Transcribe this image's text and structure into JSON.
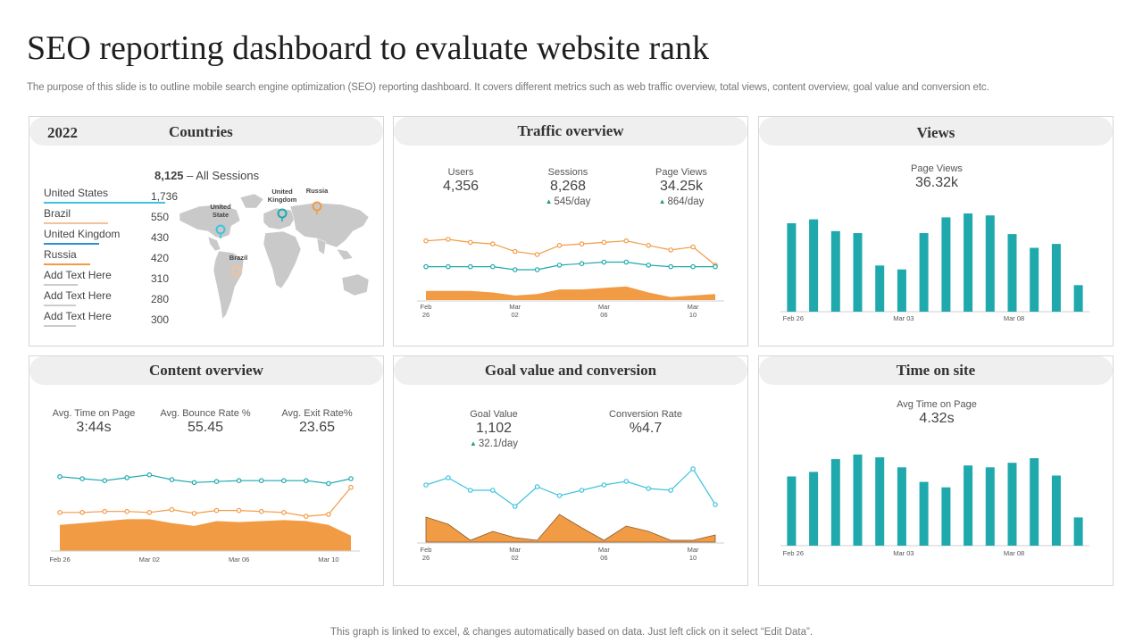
{
  "page": {
    "title": "SEO reporting dashboard to evaluate website rank",
    "subtitle": "The purpose of this slide is to outline mobile search engine optimization (SEO) reporting dashboard. It covers different metrics such as web traffic overview, total views, content overview, goal value and conversion etc.",
    "footer": "This graph is linked to excel, & changes automatically based on data. Just left click on it select “Edit Data”."
  },
  "colors": {
    "teal": "#1fa9ad",
    "orange": "#f19b45",
    "cyan": "#3fc3df",
    "blue": "#2f8fd0",
    "gray": "#c8c8c8"
  },
  "countries": {
    "year": "2022",
    "title": "Countries",
    "sessions_value": "8,125",
    "sessions_label": " – All Sessions",
    "items": [
      {
        "name": "United States",
        "value": "1,736",
        "color": "#3fc3df"
      },
      {
        "name": "Brazil",
        "value": "550",
        "color": "#f4c199"
      },
      {
        "name": "United Kingdom",
        "value": "430",
        "color": "#2f8fd0"
      },
      {
        "name": "Russia",
        "value": "420",
        "color": "#f19b45"
      },
      {
        "name": "Add Text Here",
        "value": "310",
        "color": "#cccccc"
      },
      {
        "name": "Add Text Here",
        "value": "280",
        "color": "#cccccc"
      },
      {
        "name": "Add Text Here",
        "value": "300",
        "color": "#cccccc"
      }
    ],
    "map_labels": {
      "us": "United State",
      "uk": "United Kingdom",
      "russia": "Russia",
      "brazil": "Brazil"
    }
  },
  "traffic": {
    "title": "Traffic overview",
    "metrics": [
      {
        "label": "Users",
        "value": "4,356",
        "delta": ""
      },
      {
        "label": "Sessions",
        "value": "8,268",
        "delta": "545/day"
      },
      {
        "label": "Page Views",
        "value": "34.25k",
        "delta": "864/day"
      }
    ]
  },
  "views": {
    "title": "Views",
    "label": "Page Views",
    "value": "36.32k"
  },
  "content": {
    "title": "Content overview",
    "metrics": [
      {
        "label": "Avg. Time on Page",
        "value": "3:44s"
      },
      {
        "label": "Avg. Bounce Rate %",
        "value": "55.45"
      },
      {
        "label": "Avg. Exit Rate%",
        "value": "23.65"
      }
    ]
  },
  "goal": {
    "title": "Goal value and conversion",
    "metrics": [
      {
        "label": "Goal Value",
        "value": "1,102",
        "delta": "32.1/day"
      },
      {
        "label": "Conversion Rate",
        "value": "%4.7",
        "delta": ""
      }
    ]
  },
  "time": {
    "title": "Time on site",
    "label": "Avg Time on Page",
    "value": "4.32s"
  },
  "chart_data": [
    {
      "id": "traffic",
      "type": "line",
      "title": "Traffic overview",
      "x": [
        "Feb 26",
        "Feb 27",
        "Feb 28",
        "Mar 01",
        "Mar 02",
        "Mar 03",
        "Mar 04",
        "Mar 05",
        "Mar 06",
        "Mar 07",
        "Mar 08",
        "Mar 09",
        "Mar 10",
        "Mar 11"
      ],
      "x_ticks": [
        [
          "Feb",
          "26"
        ],
        [
          "Mar",
          "02"
        ],
        [
          "Mar",
          "06"
        ],
        [
          "Mar",
          "10"
        ]
      ],
      "x_tick_index": [
        0,
        4,
        8,
        12
      ],
      "ylim": [
        0,
        100
      ],
      "series": [
        {
          "name": "Page Views",
          "kind": "line",
          "color": "#f19b45",
          "values": [
            78,
            80,
            76,
            74,
            64,
            60,
            72,
            74,
            76,
            78,
            72,
            66,
            70,
            46
          ]
        },
        {
          "name": "Sessions",
          "kind": "line",
          "color": "#1fa9ad",
          "values": [
            44,
            44,
            44,
            44,
            40,
            40,
            46,
            48,
            50,
            50,
            46,
            44,
            44,
            44
          ]
        },
        {
          "name": "Users",
          "kind": "area",
          "color": "#f19b45",
          "values": [
            12,
            12,
            12,
            10,
            6,
            8,
            14,
            14,
            16,
            18,
            10,
            4,
            6,
            8
          ]
        }
      ]
    },
    {
      "id": "views",
      "type": "bar",
      "title": "Page Views",
      "categories": [
        "Feb 26",
        "Feb 27",
        "Feb 28",
        "Mar 01",
        "Mar 02",
        "Mar 03",
        "Mar 04",
        "Mar 05",
        "Mar 06",
        "Mar 07",
        "Mar 08",
        "Mar 09",
        "Mar 10",
        "Mar 11"
      ],
      "x_ticks": [
        "Feb 26",
        "Mar 03",
        "Mar 08"
      ],
      "x_tick_index": [
        0,
        5,
        10
      ],
      "ylim": [
        0,
        100
      ],
      "color": "#1fa9ad",
      "values": [
        90,
        94,
        82,
        80,
        47,
        43,
        80,
        96,
        100,
        98,
        79,
        65,
        69,
        27
      ]
    },
    {
      "id": "content",
      "type": "line",
      "title": "Content overview",
      "x": [
        "Feb 26",
        "Feb 27",
        "Feb 28",
        "Mar 01",
        "Mar 02",
        "Mar 03",
        "Mar 04",
        "Mar 05",
        "Mar 06",
        "Mar 07",
        "Mar 08",
        "Mar 09",
        "Mar 10",
        "Mar 11"
      ],
      "x_ticks": [
        "Feb 26",
        "Mar 02",
        "Mar 06",
        "Mar 10"
      ],
      "x_tick_index": [
        0,
        4,
        8,
        12
      ],
      "ylim": [
        0,
        100
      ],
      "series": [
        {
          "name": "Avg. Time on Page",
          "kind": "line",
          "color": "#1fa9ad",
          "values": [
            77,
            75,
            73,
            76,
            79,
            74,
            71,
            72,
            73,
            73,
            73,
            73,
            70,
            75
          ]
        },
        {
          "name": "Avg. Exit Rate%",
          "kind": "line",
          "color": "#f19b45",
          "values": [
            40,
            40,
            41,
            41,
            40,
            43,
            39,
            42,
            42,
            41,
            40,
            36,
            38,
            66
          ]
        },
        {
          "name": "Avg. Bounce Rate %",
          "kind": "area",
          "color": "#f19b45",
          "values": [
            27,
            29,
            31,
            33,
            33,
            29,
            26,
            31,
            30,
            31,
            32,
            31,
            27,
            16
          ]
        }
      ]
    },
    {
      "id": "goal",
      "type": "line",
      "title": "Goal value and conversion",
      "x": [
        "Feb 26",
        "Feb 27",
        "Feb 28",
        "Mar 01",
        "Mar 02",
        "Mar 03",
        "Mar 04",
        "Mar 05",
        "Mar 06",
        "Mar 07",
        "Mar 08",
        "Mar 09",
        "Mar 10",
        "Mar 11"
      ],
      "x_ticks": [
        [
          "Feb",
          "26"
        ],
        [
          "Mar",
          "02"
        ],
        [
          "Mar",
          "06"
        ],
        [
          "Mar",
          "10"
        ]
      ],
      "x_tick_index": [
        0,
        4,
        8,
        12
      ],
      "ylim": [
        0,
        100
      ],
      "series": [
        {
          "name": "Goal Value",
          "kind": "line",
          "color": "#3fc3df",
          "values": [
            64,
            72,
            58,
            58,
            40,
            62,
            52,
            58,
            64,
            68,
            60,
            58,
            82,
            42
          ]
        },
        {
          "name": "Conversion Rate",
          "kind": "area",
          "color": "#f19b45",
          "values": [
            28,
            20,
            2,
            12,
            5,
            2,
            31,
            16,
            2,
            18,
            12,
            2,
            2,
            8
          ]
        }
      ]
    },
    {
      "id": "time",
      "type": "bar",
      "title": "Avg Time on Page",
      "categories": [
        "Feb 26",
        "Feb 27",
        "Feb 28",
        "Mar 01",
        "Mar 02",
        "Mar 03",
        "Mar 04",
        "Mar 05",
        "Mar 06",
        "Mar 07",
        "Mar 08",
        "Mar 09",
        "Mar 10",
        "Mar 11"
      ],
      "x_ticks": [
        "Feb 26",
        "Mar 03",
        "Mar 08"
      ],
      "x_tick_index": [
        0,
        5,
        10
      ],
      "ylim": [
        0,
        100
      ],
      "color": "#1fa9ad",
      "values": [
        76,
        81,
        95,
        100,
        97,
        86,
        70,
        64,
        88,
        86,
        91,
        96,
        77,
        31
      ]
    }
  ]
}
